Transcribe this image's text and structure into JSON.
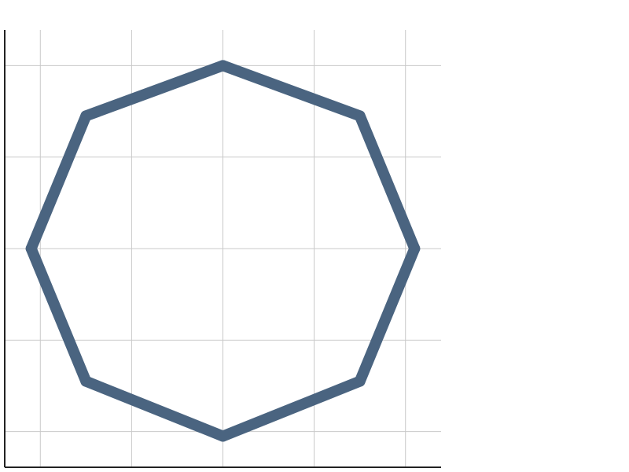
{
  "chart_data": {
    "type": "line",
    "title": "",
    "xlabel": "",
    "ylabel": "",
    "xlim": [
      -2.39,
      2.39
    ],
    "ylim": [
      -2.39,
      2.39
    ],
    "grid": true,
    "legend": "none",
    "tick_labels_visible": false,
    "x_grid": [
      -2,
      -1,
      0,
      1,
      2
    ],
    "y_grid": [
      -2,
      -1,
      0,
      1,
      2
    ],
    "series": [
      {
        "shape": "octagon",
        "color": "#4a6480",
        "closed": true,
        "points": [
          {
            "x": 0.0,
            "y": 2.0
          },
          {
            "x": 1.5,
            "y": 1.45
          },
          {
            "x": 2.1,
            "y": 0.0
          },
          {
            "x": 1.5,
            "y": -1.45
          },
          {
            "x": 0.0,
            "y": -2.05
          },
          {
            "x": -1.5,
            "y": -1.45
          },
          {
            "x": -2.1,
            "y": 0.0
          },
          {
            "x": -1.5,
            "y": 1.45
          }
        ]
      }
    ]
  }
}
